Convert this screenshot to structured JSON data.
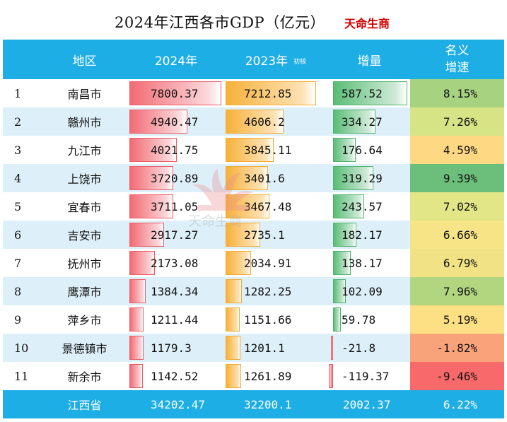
{
  "title": "2024年江西各市GDP（亿元）",
  "brand": "天命生商",
  "headers": {
    "region": "地区",
    "y2024": "2024年",
    "y2023": "2023年",
    "y2023_note": "初核",
    "increase": "增量",
    "rate_line1": "名义",
    "rate_line2": "增速"
  },
  "rows": [
    {
      "rank": "1",
      "city": "南昌市",
      "v2024": "7800.37",
      "v2023": "7212.85",
      "increase": "587.52",
      "rate": "8.15%"
    },
    {
      "rank": "2",
      "city": "赣州市",
      "v2024": "4940.47",
      "v2023": "4606.2",
      "increase": "334.27",
      "rate": "7.26%"
    },
    {
      "rank": "3",
      "city": "九江市",
      "v2024": "4021.75",
      "v2023": "3845.11",
      "increase": "176.64",
      "rate": "4.59%"
    },
    {
      "rank": "4",
      "city": "上饶市",
      "v2024": "3720.89",
      "v2023": "3401.6",
      "increase": "319.29",
      "rate": "9.39%"
    },
    {
      "rank": "5",
      "city": "宜春市",
      "v2024": "3711.05",
      "v2023": "3467.48",
      "increase": "243.57",
      "rate": "7.02%"
    },
    {
      "rank": "6",
      "city": "吉安市",
      "v2024": "2917.27",
      "v2023": "2735.1",
      "increase": "182.17",
      "rate": "6.66%"
    },
    {
      "rank": "7",
      "city": "抚州市",
      "v2024": "2173.08",
      "v2023": "2034.91",
      "increase": "138.17",
      "rate": "6.79%"
    },
    {
      "rank": "8",
      "city": "鹰潭市",
      "v2024": "1384.34",
      "v2023": "1282.25",
      "increase": "102.09",
      "rate": "7.96%"
    },
    {
      "rank": "9",
      "city": "萍乡市",
      "v2024": "1211.44",
      "v2023": "1151.66",
      "increase": "59.78",
      "rate": "5.19%"
    },
    {
      "rank": "10",
      "city": "景德镇市",
      "v2024": "1179.3",
      "v2023": "1201.1",
      "increase": "-21.8",
      "rate": "-1.82%"
    },
    {
      "rank": "11",
      "city": "新余市",
      "v2024": "1142.52",
      "v2023": "1261.89",
      "increase": "-119.37",
      "rate": "-9.46%"
    }
  ],
  "total": {
    "city": "江西省",
    "v2024": "34202.47",
    "v2023": "32200.1",
    "increase": "2002.37",
    "rate": "6.22%"
  },
  "rate_colors": [
    "#a7d27f",
    "#d6e485",
    "#fed882",
    "#6cbf7b",
    "#e3e686",
    "#f6e486",
    "#f1e385",
    "#b2d680",
    "#fde083",
    "#f9a37a",
    "#f8696b"
  ],
  "watermark_text": "天命生商",
  "colors": {
    "header_bg": "#1eaee6",
    "row_alt": "#ddeff8",
    "brand": "#d40000"
  }
}
